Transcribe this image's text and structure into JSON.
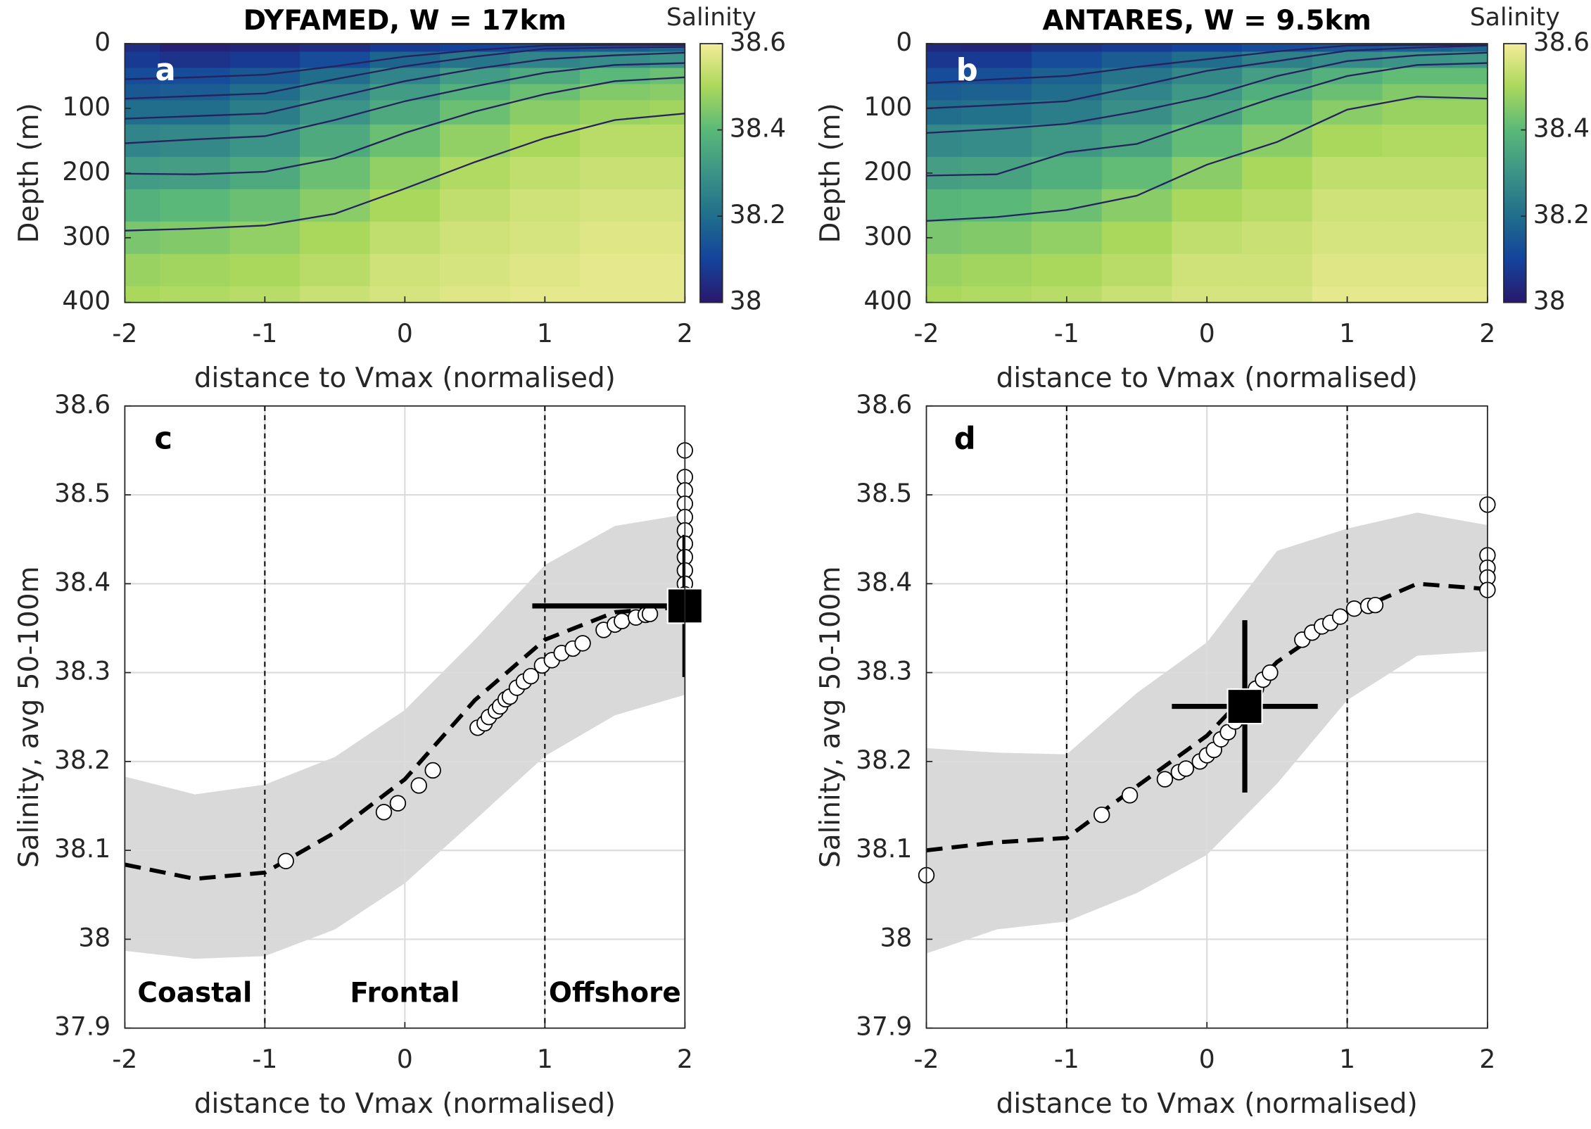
{
  "chart_data": [
    {
      "type": "heatmap",
      "title": "DYFAMED, W = 17km",
      "panel_label": "a",
      "x_label": "distance to Vmax (normalised)",
      "y_label": "Depth (m)",
      "x": [
        -2,
        -1.5,
        -1,
        -0.5,
        0,
        0.5,
        1,
        1.5,
        2
      ],
      "y": [
        0,
        25,
        50,
        75,
        100,
        150,
        200,
        250,
        300,
        350,
        400
      ],
      "values": [
        [
          38.05,
          38.02,
          38.03,
          38.05,
          38.08,
          38.1,
          38.12,
          38.15,
          38.18
        ],
        [
          38.08,
          38.06,
          38.08,
          38.12,
          38.18,
          38.22,
          38.26,
          38.28,
          38.3
        ],
        [
          38.12,
          38.12,
          38.15,
          38.2,
          38.26,
          38.32,
          38.36,
          38.4,
          38.42
        ],
        [
          38.15,
          38.16,
          38.2,
          38.26,
          38.32,
          38.38,
          38.42,
          38.45,
          38.46
        ],
        [
          38.2,
          38.2,
          38.24,
          38.3,
          38.36,
          38.42,
          38.46,
          38.48,
          38.49
        ],
        [
          38.26,
          38.27,
          38.3,
          38.36,
          38.42,
          38.47,
          38.5,
          38.52,
          38.52
        ],
        [
          38.32,
          38.33,
          38.36,
          38.42,
          38.47,
          38.51,
          38.53,
          38.54,
          38.54
        ],
        [
          38.38,
          38.4,
          38.42,
          38.46,
          38.5,
          38.53,
          38.55,
          38.56,
          38.56
        ],
        [
          38.44,
          38.45,
          38.47,
          38.5,
          38.53,
          38.55,
          38.56,
          38.57,
          38.57
        ],
        [
          38.48,
          38.49,
          38.5,
          38.52,
          38.55,
          38.56,
          38.57,
          38.58,
          38.58
        ],
        [
          38.5,
          38.51,
          38.52,
          38.54,
          38.56,
          38.57,
          38.58,
          38.58,
          38.58
        ]
      ],
      "contour_x": [
        -2,
        -1.5,
        -1,
        -0.5,
        0,
        0.5,
        1,
        1.5,
        2
      ],
      "contours": [
        {
          "values": [
            289,
            286,
            281,
            263,
            224,
            183,
            146,
            118,
            108
          ]
        },
        {
          "values": [
            201,
            202,
            198,
            177,
            138,
            105,
            78,
            58,
            52
          ]
        },
        {
          "values": [
            154,
            148,
            143,
            118,
            89,
            66,
            45,
            33,
            30
          ]
        },
        {
          "values": [
            116,
            112,
            108,
            83,
            58,
            39,
            24,
            18,
            14
          ]
        },
        {
          "values": [
            85,
            81,
            77,
            55,
            35,
            20,
            8,
            6,
            5
          ]
        },
        {
          "values": [
            55,
            52,
            48,
            35,
            20,
            10,
            3,
            2,
            2
          ]
        }
      ],
      "contour_color": "#26215f",
      "xlim": [
        -2,
        2
      ],
      "ylim": [
        0,
        400
      ],
      "y_inverted": true,
      "xticks": [
        -2,
        -1,
        0,
        1,
        2
      ],
      "yticks": [
        0,
        100,
        200,
        300,
        400
      ],
      "colorbar_label": "Salinity",
      "clim": [
        38,
        38.6
      ],
      "cticks": [
        38,
        38.2,
        38.4,
        38.6
      ],
      "colormap": [
        "#2a186c",
        "#14439c",
        "#206e8b",
        "#3c9387",
        "#5ab978",
        "#aad85c",
        "#f4ec98"
      ]
    },
    {
      "type": "heatmap",
      "title": "ANTARES, W = 9.5km",
      "panel_label": "b",
      "x_label": "distance to Vmax (normalised)",
      "y_label": "Depth (m)",
      "x": [
        -2,
        -1.5,
        -1,
        -0.5,
        0,
        0.5,
        1,
        1.5,
        2
      ],
      "y": [
        0,
        25,
        50,
        75,
        100,
        150,
        200,
        250,
        300,
        350,
        400
      ],
      "values": [
        [
          38.04,
          38.03,
          38.06,
          38.08,
          38.1,
          38.12,
          38.14,
          38.16,
          38.18
        ],
        [
          38.07,
          38.08,
          38.12,
          38.16,
          38.2,
          38.25,
          38.28,
          38.3,
          38.31
        ],
        [
          38.12,
          38.13,
          38.17,
          38.22,
          38.27,
          38.33,
          38.38,
          38.41,
          38.41
        ],
        [
          38.16,
          38.17,
          38.2,
          38.26,
          38.31,
          38.37,
          38.42,
          38.45,
          38.45
        ],
        [
          38.2,
          38.21,
          38.24,
          38.29,
          38.34,
          38.41,
          38.46,
          38.48,
          38.48
        ],
        [
          38.27,
          38.28,
          38.31,
          38.35,
          38.41,
          38.46,
          38.5,
          38.51,
          38.51
        ],
        [
          38.33,
          38.34,
          38.37,
          38.41,
          38.46,
          38.5,
          38.53,
          38.53,
          38.53
        ],
        [
          38.39,
          38.4,
          38.42,
          38.46,
          38.5,
          38.52,
          38.55,
          38.55,
          38.55
        ],
        [
          38.44,
          38.45,
          38.47,
          38.5,
          38.53,
          38.54,
          38.56,
          38.56,
          38.56
        ],
        [
          38.48,
          38.49,
          38.5,
          38.52,
          38.55,
          38.55,
          38.57,
          38.57,
          38.57
        ],
        [
          38.5,
          38.51,
          38.52,
          38.54,
          38.56,
          38.56,
          38.58,
          38.58,
          38.58
        ]
      ],
      "contour_x": [
        -2,
        -1.5,
        -1,
        -0.5,
        0,
        0.5,
        1,
        1.5,
        2
      ],
      "contours": [
        {
          "values": [
            274,
            268,
            257,
            235,
            187,
            152,
            102,
            82,
            85
          ]
        },
        {
          "values": [
            204,
            202,
            168,
            155,
            118,
            82,
            50,
            33,
            30
          ]
        },
        {
          "values": [
            138,
            132,
            124,
            105,
            82,
            50,
            27,
            18,
            14
          ]
        },
        {
          "values": [
            100,
            95,
            89,
            66,
            42,
            27,
            11,
            6,
            3
          ]
        },
        {
          "values": [
            61,
            55,
            50,
            36,
            24,
            12,
            3,
            2,
            2
          ]
        }
      ],
      "contour_color": "#26215f",
      "xlim": [
        -2,
        2
      ],
      "ylim": [
        0,
        400
      ],
      "y_inverted": true,
      "xticks": [
        -2,
        -1,
        0,
        1,
        2
      ],
      "yticks": [
        0,
        100,
        200,
        300,
        400
      ],
      "colorbar_label": "Salinity",
      "clim": [
        38,
        38.6
      ],
      "cticks": [
        38,
        38.2,
        38.4,
        38.6
      ],
      "colormap": [
        "#2a186c",
        "#14439c",
        "#206e8b",
        "#3c9387",
        "#5ab978",
        "#aad85c",
        "#f4ec98"
      ]
    },
    {
      "type": "scatter",
      "panel_label": "c",
      "x_label": "distance to Vmax (normalised)",
      "y_label": "Salinity, avg 50-100m",
      "xlim": [
        -2,
        2
      ],
      "ylim": [
        37.9,
        38.6
      ],
      "xticks": [
        -2,
        -1,
        0,
        1,
        2
      ],
      "yticks": [
        37.9,
        38,
        38.1,
        38.2,
        38.3,
        38.4,
        38.5,
        38.6
      ],
      "grid": true,
      "region_lines": [
        -1,
        1
      ],
      "region_labels": [
        "Coastal",
        "Frontal",
        "Offshore"
      ],
      "band": {
        "x": [
          -2,
          -1.5,
          -1,
          -0.5,
          0,
          0.5,
          1,
          1.5,
          2
        ],
        "upper": [
          38.183,
          38.163,
          38.174,
          38.205,
          38.258,
          38.337,
          38.421,
          38.465,
          38.478
        ],
        "lower": [
          37.987,
          37.978,
          37.981,
          38.011,
          38.063,
          38.134,
          38.206,
          38.252,
          38.275
        ],
        "color": "#d9d9d9"
      },
      "mean": {
        "x": [
          -2,
          -1.5,
          -1,
          -0.5,
          0,
          0.5,
          1,
          1.5,
          2
        ],
        "values": [
          38.084,
          38.068,
          38.075,
          38.12,
          38.18,
          38.269,
          38.337,
          38.368,
          38.374
        ]
      },
      "points": {
        "x": [
          -0.85,
          -0.15,
          -0.05,
          0.1,
          0.2,
          0.52,
          0.57,
          0.6,
          0.65,
          0.68,
          0.72,
          0.75,
          0.8,
          0.85,
          0.9,
          0.98,
          1.05,
          1.12,
          1.2,
          1.27,
          1.42,
          1.5,
          1.55,
          1.65,
          1.72,
          1.75,
          2,
          2,
          2,
          2,
          2,
          2,
          2,
          2,
          2,
          2,
          2
        ],
        "y": [
          38.088,
          38.143,
          38.153,
          38.173,
          38.19,
          38.238,
          38.243,
          38.25,
          38.257,
          38.262,
          38.27,
          38.273,
          38.283,
          38.29,
          38.296,
          38.308,
          38.314,
          38.322,
          38.327,
          38.333,
          38.348,
          38.354,
          38.358,
          38.362,
          38.365,
          38.366,
          38.55,
          38.52,
          38.505,
          38.49,
          38.475,
          38.46,
          38.445,
          38.43,
          38.415,
          38.4,
          38.388
        ]
      },
      "marker": {
        "x": 2,
        "y": 38.375,
        "xerr": 1.09,
        "yerr": 0.08
      }
    },
    {
      "type": "scatter",
      "panel_label": "d",
      "x_label": "distance to Vmax (normalised)",
      "y_label": "Salinity, avg 50-100m",
      "xlim": [
        -2,
        2
      ],
      "ylim": [
        37.9,
        38.6
      ],
      "xticks": [
        -2,
        -1,
        0,
        1,
        2
      ],
      "yticks": [
        37.9,
        38,
        38.1,
        38.2,
        38.3,
        38.4,
        38.5,
        38.6
      ],
      "grid": true,
      "region_lines": [
        -1,
        1
      ],
      "band": {
        "x": [
          -2,
          -1.5,
          -1,
          -0.5,
          0,
          0.5,
          1,
          1.5,
          2
        ],
        "upper": [
          38.215,
          38.21,
          38.208,
          38.277,
          38.334,
          38.437,
          38.462,
          38.48,
          38.466
        ],
        "lower": [
          37.984,
          38.011,
          38.02,
          38.052,
          38.095,
          38.175,
          38.269,
          38.319,
          38.324
        ],
        "color": "#d9d9d9"
      },
      "mean": {
        "x": [
          -2,
          -1.5,
          -1,
          -0.5,
          0,
          0.5,
          1,
          1.5,
          2
        ],
        "values": [
          38.1,
          38.109,
          38.114,
          38.172,
          38.229,
          38.312,
          38.366,
          38.4,
          38.394
        ]
      },
      "points": {
        "x": [
          -2,
          -0.75,
          -0.55,
          -0.3,
          -0.2,
          -0.15,
          -0.05,
          0,
          0.05,
          0.1,
          0.15,
          0.2,
          0.25,
          0.3,
          0.35,
          0.4,
          0.45,
          0.68,
          0.75,
          0.82,
          0.88,
          0.95,
          1.05,
          1.15,
          1.2,
          2,
          2,
          2,
          2,
          2
        ],
        "y": [
          38.072,
          38.14,
          38.162,
          38.18,
          38.188,
          38.192,
          38.2,
          38.207,
          38.213,
          38.225,
          38.233,
          38.245,
          38.258,
          38.27,
          38.282,
          38.292,
          38.3,
          38.337,
          38.345,
          38.352,
          38.356,
          38.363,
          38.372,
          38.375,
          38.376,
          38.489,
          38.432,
          38.418,
          38.407,
          38.393
        ]
      },
      "marker": {
        "x": 0.27,
        "y": 38.262,
        "xerr": 0.52,
        "yerr": 0.097
      }
    }
  ]
}
